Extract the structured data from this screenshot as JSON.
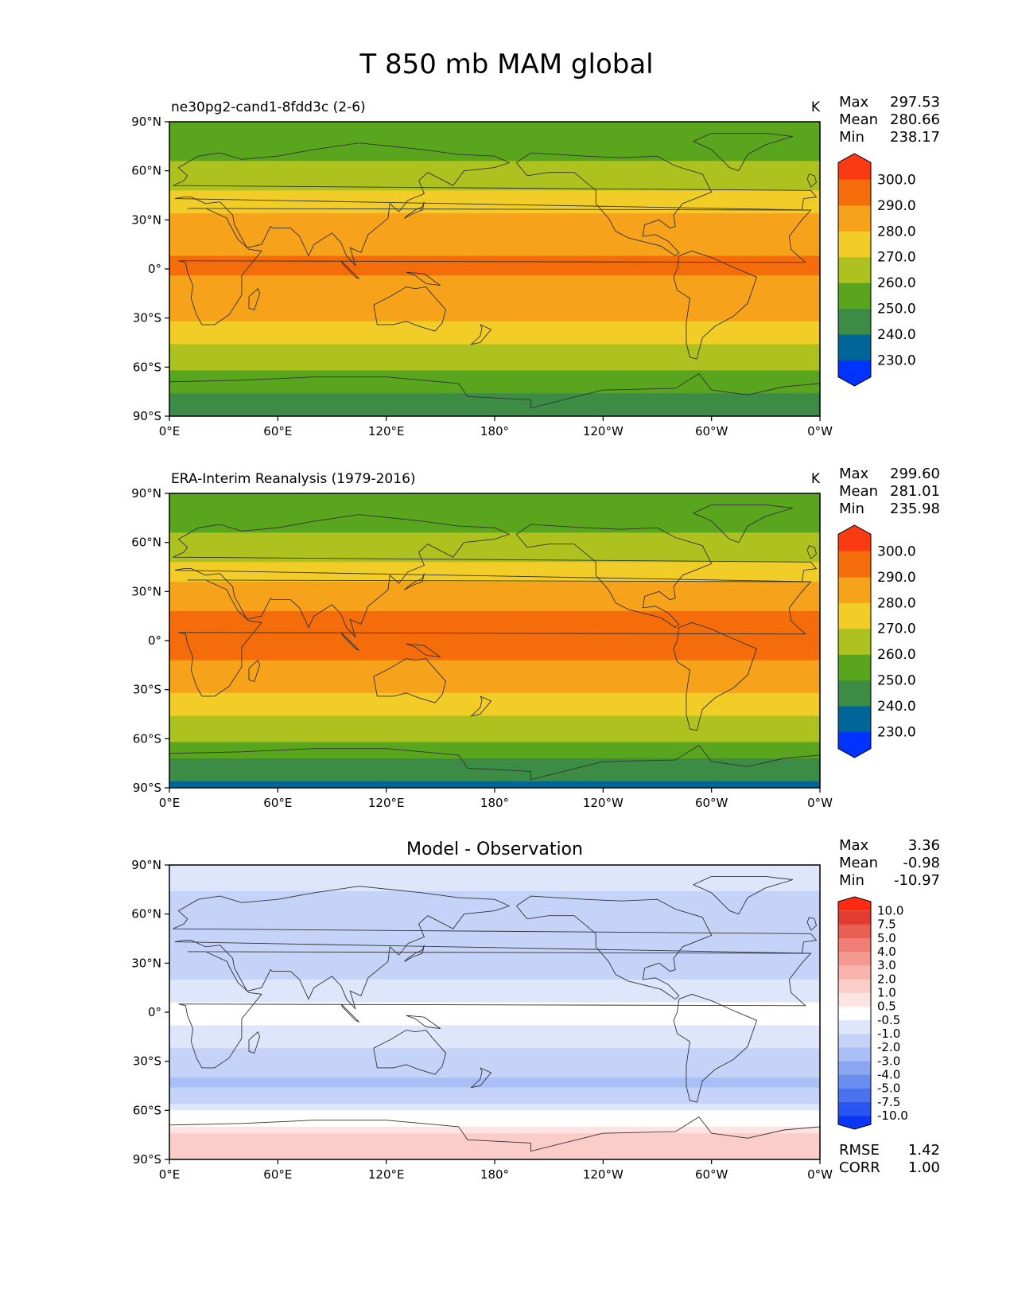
{
  "figure": {
    "title": "T 850 mb MAM global"
  },
  "axes": {
    "lat_ticks": [
      "90°N",
      "60°N",
      "30°N",
      "0°",
      "30°S",
      "60°S",
      "90°S"
    ],
    "lon_ticks": [
      "0°E",
      "60°E",
      "120°E",
      "180°",
      "120°W",
      "60°W",
      "0°W"
    ]
  },
  "colors": {
    "abs_levels": [
      "#0033ff",
      "#006699",
      "#3d8c46",
      "#5aa51e",
      "#adc21e",
      "#f2cc27",
      "#f7a21b",
      "#f56c0b",
      "#fa3a12"
    ],
    "diff_levels": [
      "#0c36f5",
      "#2855f2",
      "#4a72ee",
      "#6a8df0",
      "#8aa6f2",
      "#a9bff5",
      "#c5d3f8",
      "#dde6fb",
      "#ffffff",
      "#fde3e1",
      "#fbcdc8",
      "#f8b3ac",
      "#f49990",
      "#f07e74",
      "#ea5f54",
      "#e23b32",
      "#ff2a10"
    ],
    "land_outline": "#333333"
  },
  "panels": [
    {
      "id": "test",
      "left_title": "ne30pg2-cand1-8fdd3c (2-6)",
      "units": "K",
      "stats": {
        "max_label": "Max",
        "max": "297.53",
        "mean_label": "Mean",
        "mean": "280.66",
        "min_label": "Min",
        "min": "238.17"
      },
      "colorbar": {
        "levels": [
          "230.0",
          "240.0",
          "250.0",
          "260.0",
          "270.0",
          "280.0",
          "290.0",
          "300.0"
        ]
      }
    },
    {
      "id": "ref",
      "left_title": "ERA-Interim Reanalysis (1979-2016)",
      "units": "K",
      "stats": {
        "max_label": "Max",
        "max": "299.60",
        "mean_label": "Mean",
        "mean": "281.01",
        "min_label": "Min",
        "min": "235.98"
      },
      "colorbar": {
        "levels": [
          "230.0",
          "240.0",
          "250.0",
          "260.0",
          "270.0",
          "280.0",
          "290.0",
          "300.0"
        ]
      }
    },
    {
      "id": "diff",
      "center_title": "Model - Observation",
      "stats": {
        "max_label": "Max",
        "max": "3.36",
        "mean_label": "Mean",
        "mean": "-0.98",
        "min_label": "Min",
        "min": "-10.97"
      },
      "colorbar": {
        "levels": [
          "-10.0",
          "-7.5",
          "-5.0",
          "-4.0",
          "-3.0",
          "-2.0",
          "-1.0",
          "-0.5",
          "0.5",
          "1.0",
          "2.0",
          "3.0",
          "4.0",
          "5.0",
          "7.5",
          "10.0"
        ]
      },
      "metrics": {
        "rmse_label": "RMSE",
        "rmse": "1.42",
        "corr_label": "CORR",
        "corr": "1.00"
      }
    }
  ],
  "chart_data": [
    {
      "type": "heatmap",
      "title": "ne30pg2-cand1-8fdd3c (2-6)",
      "units": "K",
      "x_range": [
        0,
        360
      ],
      "y_range": [
        -90,
        90
      ],
      "zonal_mean_profile": {
        "lat": [
          90,
          75,
          60,
          45,
          30,
          15,
          0,
          -15,
          -30,
          -45,
          -60,
          -75,
          -90
        ],
        "value": [
          252,
          257,
          262,
          272,
          283,
          289,
          291,
          287,
          281,
          270,
          261,
          250,
          245
        ]
      },
      "levels": [
        230,
        240,
        250,
        260,
        270,
        280,
        290,
        300
      ],
      "max": 297.53,
      "mean": 280.66,
      "min": 238.17
    },
    {
      "type": "heatmap",
      "title": "ERA-Interim Reanalysis (1979-2016)",
      "units": "K",
      "x_range": [
        0,
        360
      ],
      "y_range": [
        -90,
        90
      ],
      "zonal_mean_profile": {
        "lat": [
          90,
          75,
          60,
          45,
          30,
          15,
          0,
          -15,
          -30,
          -45,
          -60,
          -75,
          -90
        ],
        "value": [
          252,
          257,
          262,
          272,
          284,
          291,
          293,
          289,
          282,
          271,
          262,
          248,
          236
        ]
      },
      "levels": [
        230,
        240,
        250,
        260,
        270,
        280,
        290,
        300
      ],
      "max": 299.6,
      "mean": 281.01,
      "min": 235.98
    },
    {
      "type": "heatmap",
      "title": "Model - Observation",
      "x_range": [
        0,
        360
      ],
      "y_range": [
        -90,
        90
      ],
      "zonal_mean_profile": {
        "lat": [
          90,
          75,
          60,
          45,
          30,
          15,
          0,
          -15,
          -30,
          -45,
          -60,
          -75,
          -90
        ],
        "value": [
          -0.8,
          -1.0,
          -1.6,
          -1.4,
          -1.8,
          -0.7,
          -0.4,
          -0.6,
          -1.6,
          -2.2,
          -0.6,
          1.2,
          1.0
        ]
      },
      "levels": [
        -10.0,
        -7.5,
        -5.0,
        -4.0,
        -3.0,
        -2.0,
        -1.0,
        -0.5,
        0.5,
        1.0,
        2.0,
        3.0,
        4.0,
        5.0,
        7.5,
        10.0
      ],
      "max": 3.36,
      "mean": -0.98,
      "min": -10.97,
      "rmse": 1.42,
      "corr": 1.0
    }
  ]
}
